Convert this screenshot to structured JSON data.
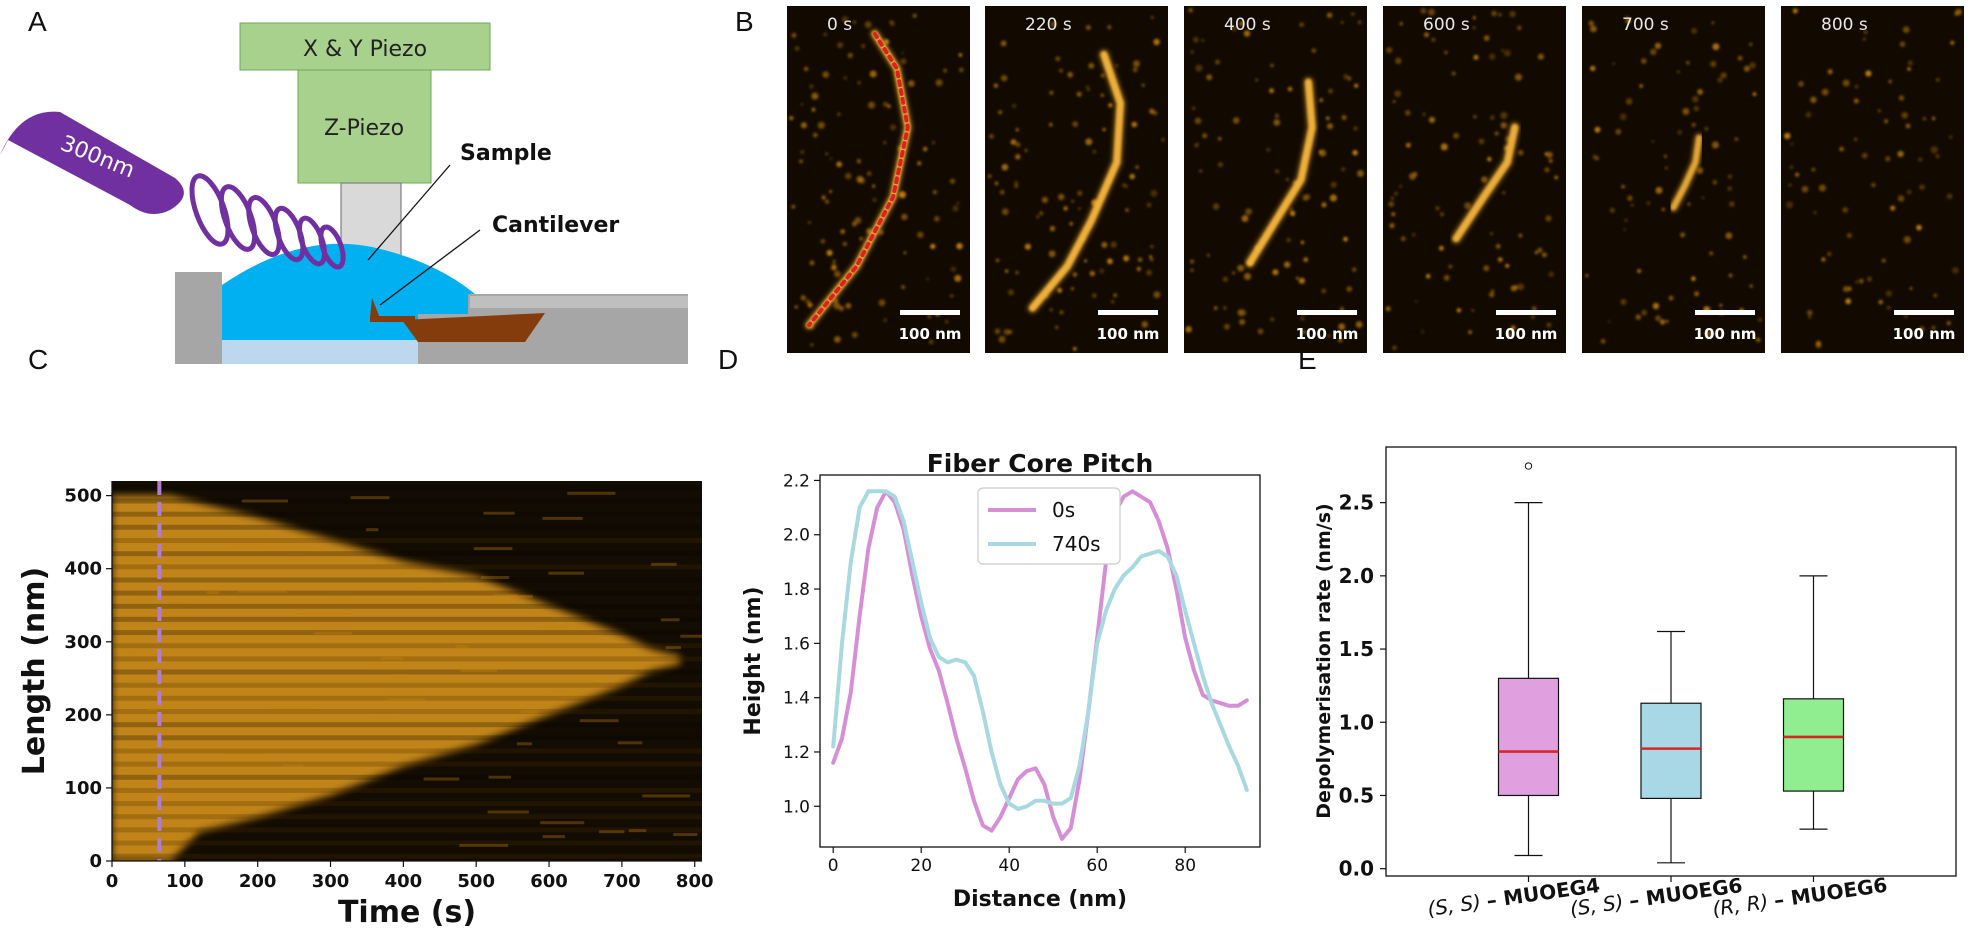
{
  "panels": {
    "A": "A",
    "B": "B",
    "C": "C",
    "D": "D",
    "E": "E"
  },
  "panel_a": {
    "xy_piezo": "X & Y Piezo",
    "z_piezo": "Z-Piezo",
    "laser": "300nm",
    "sample": "Sample",
    "cantilever": "Cantilever",
    "colors": {
      "piezo": "#a9d18e",
      "laser": "#7030a0",
      "liquid": "#00b0f0",
      "cantilever": "#843c0c",
      "frame": "#a6a6a6"
    }
  },
  "panel_b": {
    "frames": [
      {
        "time": "0 s",
        "scale": "100 nm"
      },
      {
        "time": "220 s",
        "scale": "100 nm"
      },
      {
        "time": "400 s",
        "scale": "100 nm"
      },
      {
        "time": "600 s",
        "scale": "100 nm"
      },
      {
        "time": "700 s",
        "scale": "100 nm"
      },
      {
        "time": "800 s",
        "scale": "100 nm"
      }
    ]
  },
  "chart_data": [
    {
      "type": "heatmap",
      "xlabel": "Time (s)",
      "ylabel": "Length (nm)",
      "xlim": [
        0,
        810
      ],
      "ylim": [
        0,
        520
      ],
      "x_ticks": [
        "0",
        "100",
        "200",
        "300",
        "400",
        "500",
        "600",
        "700",
        "800"
      ],
      "y_ticks": [
        "0",
        "100",
        "200",
        "300",
        "400",
        "500"
      ],
      "marker_time": 65,
      "marker_color": "#b07cd4",
      "fiber_envelope": {
        "time": [
          0,
          80,
          120,
          200,
          300,
          400,
          500,
          600,
          650,
          700,
          740,
          780
        ],
        "top": [
          500,
          500,
          490,
          470,
          440,
          410,
          390,
          350,
          330,
          310,
          290,
          280
        ],
        "bottom": [
          0,
          0,
          40,
          60,
          90,
          130,
          160,
          200,
          220,
          240,
          260,
          270
        ]
      }
    },
    {
      "type": "line",
      "title": "Fiber Core Pitch",
      "xlabel": "Distance (nm)",
      "ylabel": "Height (nm)",
      "xlim": [
        -3,
        97
      ],
      "ylim": [
        0.85,
        2.22
      ],
      "x_ticks": [
        0,
        20,
        40,
        60,
        80
      ],
      "y_ticks": [
        1.0,
        1.2,
        1.4,
        1.6,
        1.8,
        2.0,
        2.2
      ],
      "legend": "top-center",
      "series": [
        {
          "name": "0s",
          "color": "#d68fd6",
          "x": [
            0,
            2,
            4,
            6,
            8,
            10,
            12,
            14,
            16,
            18,
            20,
            22,
            24,
            26,
            28,
            30,
            32,
            34,
            36,
            38,
            40,
            42,
            44,
            46,
            48,
            50,
            52,
            54,
            56,
            58,
            60,
            62,
            64,
            66,
            68,
            70,
            72,
            74,
            76,
            78,
            80,
            82,
            84,
            86,
            88,
            90,
            92,
            94
          ],
          "y": [
            1.16,
            1.25,
            1.42,
            1.7,
            1.95,
            2.1,
            2.16,
            2.12,
            2.02,
            1.85,
            1.7,
            1.58,
            1.5,
            1.38,
            1.25,
            1.14,
            1.02,
            0.93,
            0.91,
            0.96,
            1.03,
            1.1,
            1.13,
            1.14,
            1.08,
            0.96,
            0.88,
            0.92,
            1.1,
            1.35,
            1.62,
            1.9,
            2.08,
            2.14,
            2.16,
            2.14,
            2.12,
            2.05,
            1.95,
            1.8,
            1.62,
            1.5,
            1.41,
            1.39,
            1.38,
            1.37,
            1.37,
            1.39
          ]
        },
        {
          "name": "740s",
          "color": "#a8d8e0",
          "x": [
            0,
            2,
            4,
            6,
            8,
            10,
            12,
            14,
            16,
            18,
            20,
            22,
            24,
            26,
            28,
            30,
            32,
            34,
            36,
            38,
            40,
            42,
            44,
            46,
            48,
            50,
            52,
            54,
            56,
            58,
            60,
            62,
            64,
            66,
            68,
            70,
            72,
            74,
            76,
            78,
            80,
            82,
            84,
            86,
            88,
            90,
            92,
            94
          ],
          "y": [
            1.22,
            1.6,
            1.9,
            2.1,
            2.16,
            2.16,
            2.16,
            2.14,
            2.05,
            1.9,
            1.75,
            1.62,
            1.55,
            1.53,
            1.54,
            1.53,
            1.48,
            1.35,
            1.2,
            1.08,
            1.01,
            0.99,
            1.0,
            1.02,
            1.02,
            1.01,
            1.01,
            1.03,
            1.15,
            1.35,
            1.6,
            1.72,
            1.8,
            1.85,
            1.88,
            1.92,
            1.93,
            1.94,
            1.92,
            1.85,
            1.72,
            1.6,
            1.48,
            1.38,
            1.3,
            1.22,
            1.15,
            1.06
          ]
        }
      ]
    },
    {
      "type": "box",
      "ylabel": "Depolymerisation rate (nm/s)",
      "ylim": [
        -0.05,
        2.88
      ],
      "y_ticks": [
        "0.0",
        "0.5",
        "1.0",
        "1.5",
        "2.0",
        "2.5"
      ],
      "categories": [
        {
          "prefix": "(S, S)",
          "name": "– MUOEG4",
          "color": "#e0a0e0"
        },
        {
          "prefix": "(S, S)",
          "name": "– MUOEG6",
          "color": "#a8d8e6"
        },
        {
          "prefix": "(R, R)",
          "name": "– MUOEG6",
          "color": "#90ee90"
        }
      ],
      "boxes": [
        {
          "whisker_low": 0.09,
          "q1": 0.5,
          "median": 0.8,
          "q3": 1.3,
          "whisker_high": 2.5,
          "outliers": [
            2.75
          ]
        },
        {
          "whisker_low": 0.04,
          "q1": 0.48,
          "median": 0.82,
          "q3": 1.13,
          "whisker_high": 1.62,
          "outliers": []
        },
        {
          "whisker_low": 0.27,
          "q1": 0.53,
          "median": 0.9,
          "q3": 1.16,
          "whisker_high": 2.0,
          "outliers": []
        }
      ],
      "median_color": "#d62728"
    }
  ]
}
